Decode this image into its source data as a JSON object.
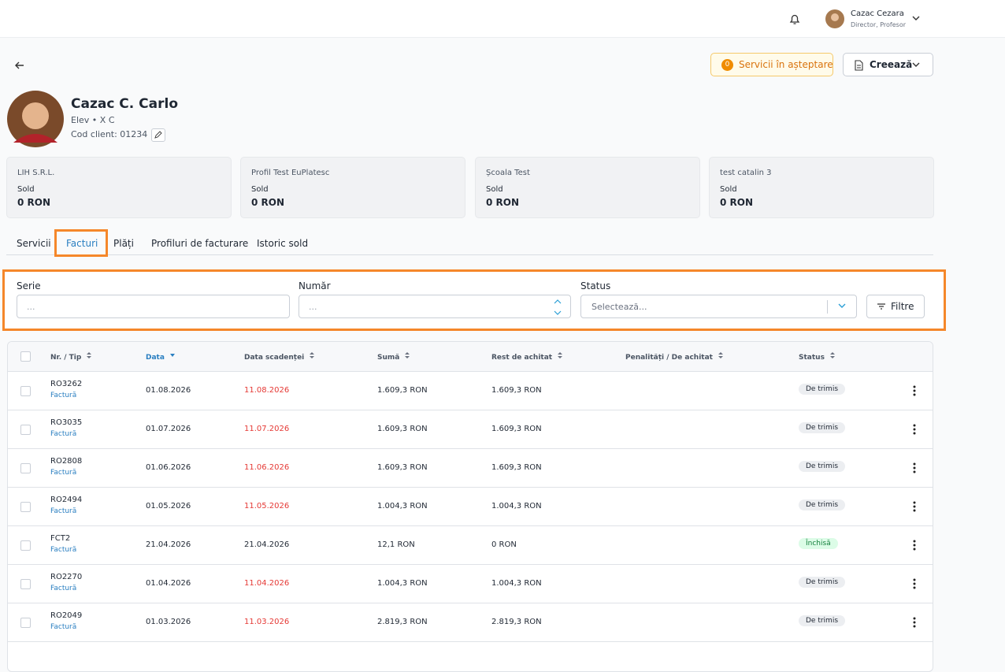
{
  "header": {
    "user_name": "Cazac Cezara",
    "user_role": "Director, Profesor"
  },
  "toolbar": {
    "pending_count": "0",
    "pending_label": "Servicii în așteptare",
    "create_label": "Creează"
  },
  "profile": {
    "name": "Cazac C. Carlo",
    "role": "Elev",
    "class": "X C",
    "client_code": "Cod client: 01234"
  },
  "cards": [
    {
      "company": "LIH S.R.L.",
      "label": "Sold",
      "value": "0 RON"
    },
    {
      "company": "Profil Test EuPlatesc",
      "label": "Sold",
      "value": "0 RON"
    },
    {
      "company": "Școala Test",
      "label": "Sold",
      "value": "0 RON"
    },
    {
      "company": "test catalin 3",
      "label": "Sold",
      "value": "0 RON"
    }
  ],
  "tabs": {
    "items": [
      "Servicii",
      "Facturi",
      "Plăți",
      "Profiluri de facturare",
      "Istoric sold"
    ],
    "active": 1
  },
  "filters": {
    "serie_label": "Serie",
    "serie_placeholder": "...",
    "numar_label": "Număr",
    "numar_placeholder": "...",
    "status_label": "Status",
    "status_placeholder": "Selectează...",
    "button": "Filtre"
  },
  "table": {
    "columns": [
      "Nr. / Tip",
      "Data",
      "Data scadenței",
      "Sumă",
      "Rest de achitat",
      "Penalități / De achitat",
      "Status"
    ],
    "sorted_column": 1,
    "rows": [
      {
        "number": "RO3262",
        "type": "Factură",
        "date": "01.08.2026",
        "due": "11.08.2026",
        "sum": "1.609,3 RON",
        "rest": "1.609,3 RON",
        "status": "De trimis",
        "overdue": true,
        "closed": false
      },
      {
        "number": "RO3035",
        "type": "Factură",
        "date": "01.07.2026",
        "due": "11.07.2026",
        "sum": "1.609,3 RON",
        "rest": "1.609,3 RON",
        "status": "De trimis",
        "overdue": true,
        "closed": false
      },
      {
        "number": "RO2808",
        "type": "Factură",
        "date": "01.06.2026",
        "due": "11.06.2026",
        "sum": "1.609,3 RON",
        "rest": "1.609,3 RON",
        "status": "De trimis",
        "overdue": true,
        "closed": false
      },
      {
        "number": "RO2494",
        "type": "Factură",
        "date": "01.05.2026",
        "due": "11.05.2026",
        "sum": "1.004,3 RON",
        "rest": "1.004,3 RON",
        "status": "De trimis",
        "overdue": true,
        "closed": false
      },
      {
        "number": "FCT2",
        "type": "Factură",
        "date": "21.04.2026",
        "due": "21.04.2026",
        "sum": "12,1 RON",
        "rest": "0 RON",
        "status": "Închisă",
        "overdue": false,
        "closed": true
      },
      {
        "number": "RO2270",
        "type": "Factură",
        "date": "01.04.2026",
        "due": "11.04.2026",
        "sum": "1.004,3 RON",
        "rest": "1.004,3 RON",
        "status": "De trimis",
        "overdue": true,
        "closed": false
      },
      {
        "number": "RO2049",
        "type": "Factură",
        "date": "01.03.2026",
        "due": "11.03.2026",
        "sum": "2.819,3 RON",
        "rest": "2.819,3 RON",
        "status": "De trimis",
        "overdue": true,
        "closed": false
      }
    ]
  }
}
